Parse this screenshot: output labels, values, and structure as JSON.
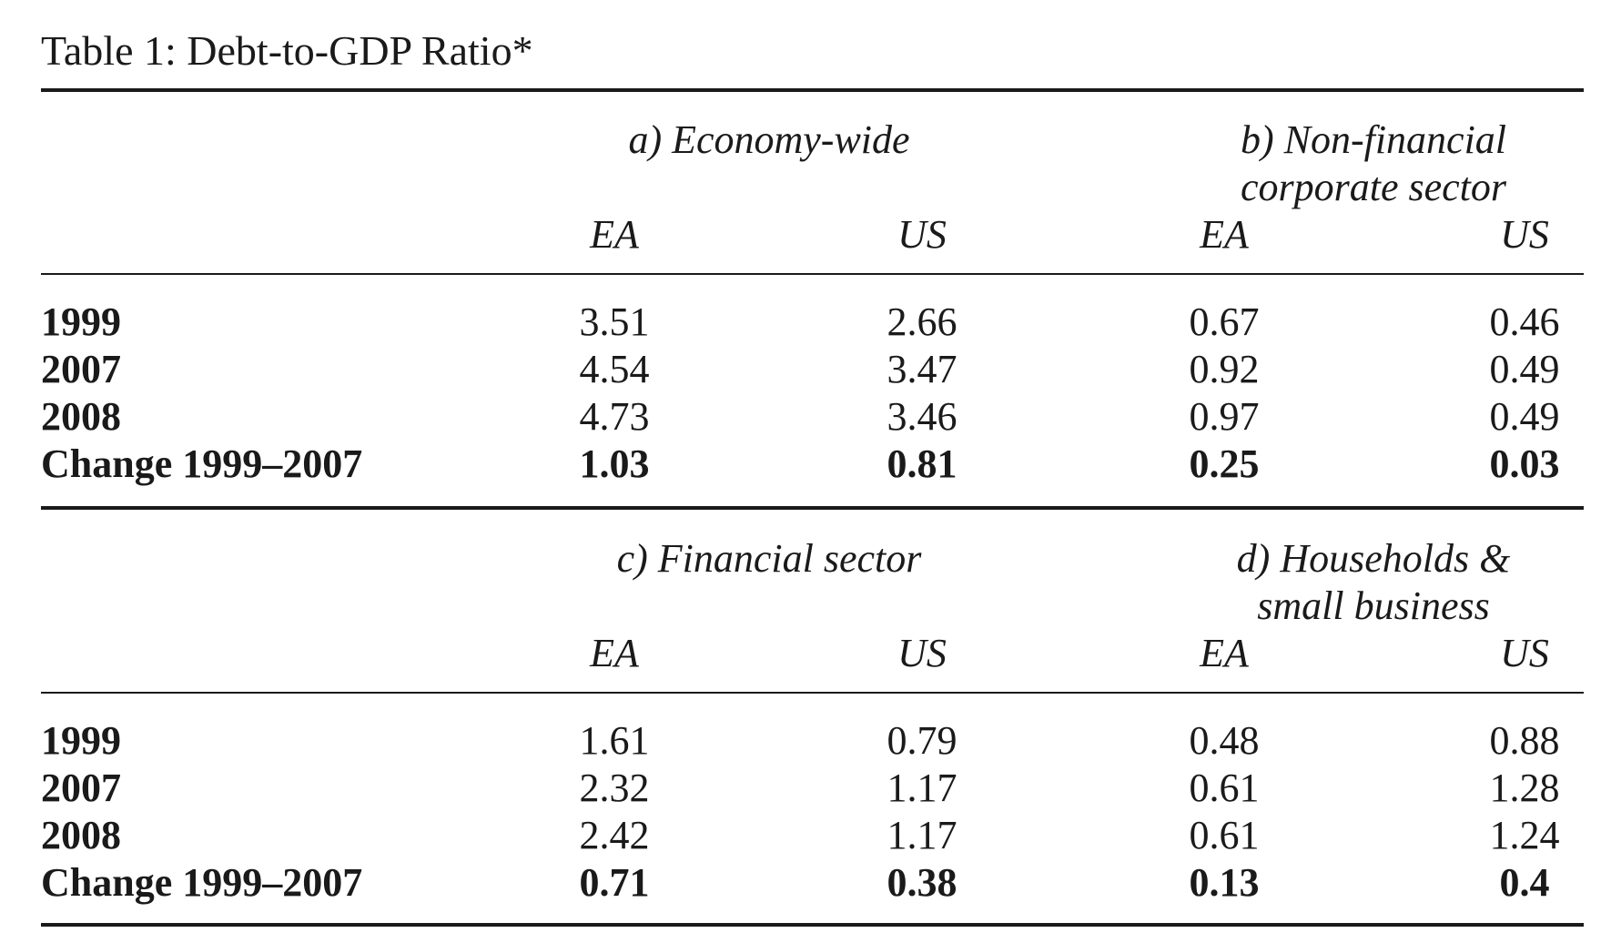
{
  "caption": "Table 1: Debt-to-GDP Ratio*",
  "row_labels": [
    "1999",
    "2007",
    "2008",
    "Change 1999–2007"
  ],
  "col_labels": [
    "EA",
    "US",
    "EA",
    "US"
  ],
  "top": {
    "left_title": "a) Economy-wide",
    "right_title_line1": "b) Non-financial",
    "right_title_line2": "corporate sector",
    "rows": [
      [
        "3.51",
        "2.66",
        "0.67",
        "0.46"
      ],
      [
        "4.54",
        "3.47",
        "0.92",
        "0.49"
      ],
      [
        "4.73",
        "3.46",
        "0.97",
        "0.49"
      ],
      [
        "1.03",
        "0.81",
        "0.25",
        "0.03"
      ]
    ]
  },
  "bottom": {
    "left_title": "c) Financial sector",
    "right_title_line1": "d) Households &",
    "right_title_line2": "small business",
    "rows": [
      [
        "1.61",
        "0.79",
        "0.48",
        "0.88"
      ],
      [
        "2.32",
        "1.17",
        "0.61",
        "1.28"
      ],
      [
        "2.42",
        "1.17",
        "0.61",
        "1.24"
      ],
      [
        "0.71",
        "0.38",
        "0.13",
        "0.4"
      ]
    ]
  }
}
